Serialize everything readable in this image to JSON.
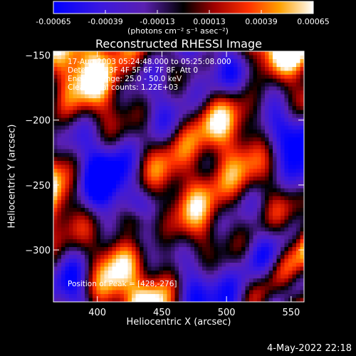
{
  "colorbar": {
    "tick_labels": [
      "-0.00065",
      "-0.00039",
      "-0.00013",
      "0.00013",
      "0.00039",
      "0.00065"
    ],
    "units_label": "(photons cm⁻² s⁻¹ asec⁻²)",
    "range": [
      -0.00065,
      0.00065
    ]
  },
  "chart_data": {
    "type": "heatmap",
    "title": "Reconstructed RHESSI Image",
    "xlabel": "Heliocentric X (arcsec)",
    "ylabel": "Heliocentric Y (arcsec)",
    "xlim": [
      366,
      560
    ],
    "ylim": [
      -340,
      -147
    ],
    "x_ticks": [
      400,
      450,
      500,
      550
    ],
    "y_ticks": [
      -150,
      -200,
      -250,
      -300
    ],
    "peak": [
      428,
      -276
    ],
    "annotations": {
      "time": "17-Aug-2003 05:24:48.000 to 05:25:08.000",
      "detectors": "Detectors: 3F 4F 5F 6F 7F 8F, Att 0",
      "energy": "Energy Range: 25.0 - 50.0 keV",
      "method": "Clean     Total counts: 1.22E+03",
      "peak_text": "Position of Peak = [428,-276]"
    }
  },
  "footer": {
    "date": "4-May-2022 22:18"
  },
  "colors": {
    "background": "#000000",
    "text": "#ffffff"
  }
}
